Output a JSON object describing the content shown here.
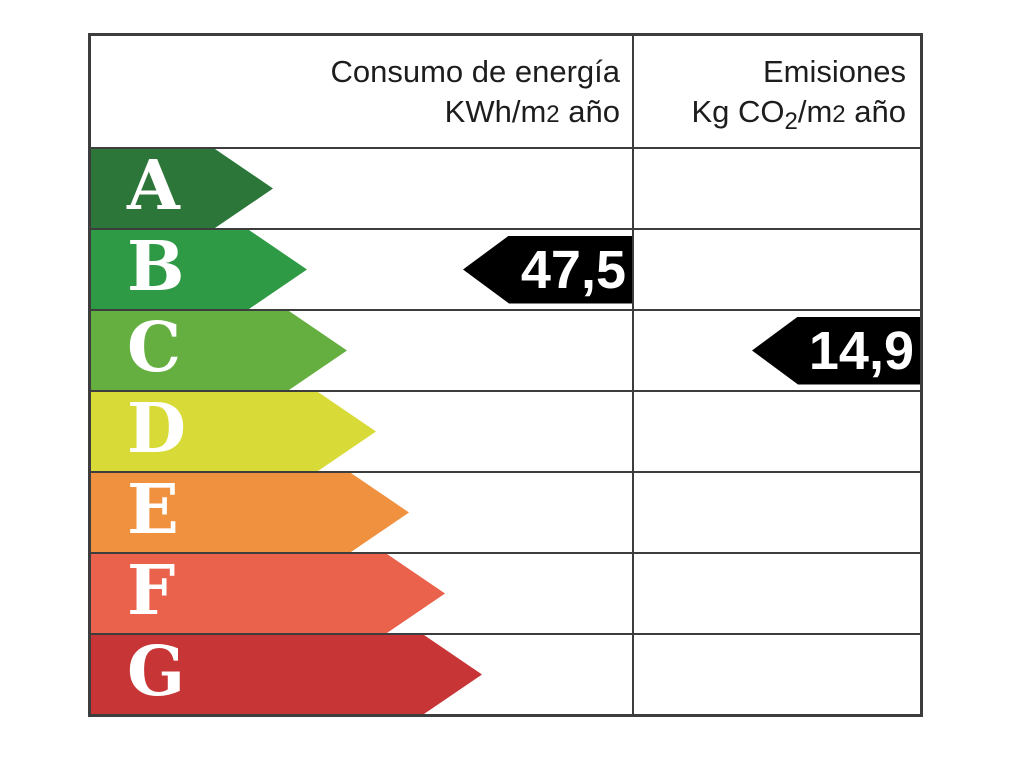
{
  "header": {
    "consumption": {
      "title": "Consumo de energía",
      "unit": {
        "p1": "KWh/m",
        "sup": "2",
        "p2": " año"
      }
    },
    "emissions": {
      "title": "Emisiones",
      "unit": {
        "p1": "Kg CO",
        "sub": "2",
        "p2": "/m",
        "sup": "2",
        "p3": " año"
      }
    }
  },
  "rows": [
    {
      "letter": "A",
      "color": "#2c763a"
    },
    {
      "letter": "B",
      "color": "#2f9a45"
    },
    {
      "letter": "C",
      "color": "#65af41"
    },
    {
      "letter": "D",
      "color": "#d8da38"
    },
    {
      "letter": "E",
      "color": "#f09140"
    },
    {
      "letter": "F",
      "color": "#ea614c"
    },
    {
      "letter": "G",
      "color": "#c73536"
    }
  ],
  "values": {
    "consumption": {
      "text": "47,5",
      "rating": "B"
    },
    "emissions": {
      "text": "14,9",
      "rating": "C"
    }
  },
  "colors": {
    "value_arrow": "#000000",
    "value_text": "#ffffff",
    "letter_text": "#ffffff",
    "border": "#3d3d3d",
    "background": "#ffffff"
  },
  "chart_data": {
    "type": "bar",
    "title": "",
    "categories": [
      "A",
      "B",
      "C",
      "D",
      "E",
      "F",
      "G"
    ],
    "bar_colors": [
      "#2c763a",
      "#2f9a45",
      "#65af41",
      "#d8da38",
      "#f09140",
      "#ea614c",
      "#c73536"
    ],
    "columns": [
      {
        "label": "Consumo de energía KWh/m2 año",
        "value": 47.5,
        "rating": "B"
      },
      {
        "label": "Emisiones Kg CO2/m2 año",
        "value": 14.9,
        "rating": "C"
      }
    ],
    "legend_position": "none",
    "grid": false
  }
}
